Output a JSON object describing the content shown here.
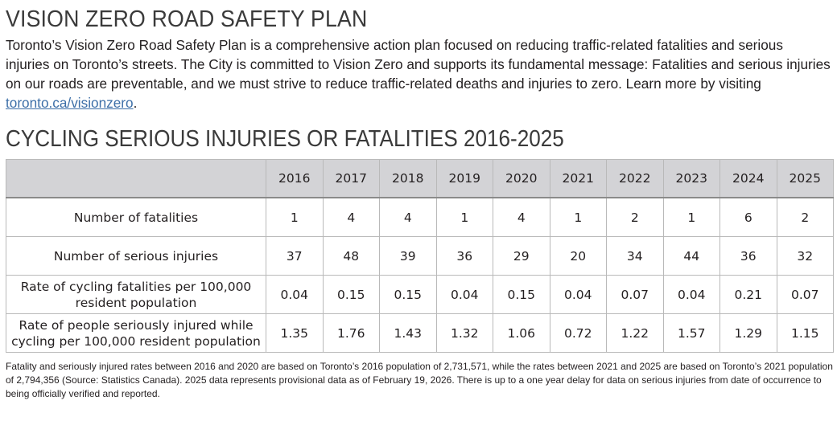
{
  "heading": "VISION ZERO ROAD SAFETY PLAN",
  "intro": {
    "text": "Toronto’s Vision Zero Road Safety Plan is a comprehensive action plan focused on reducing traffic-related fatalities and serious injuries on Toronto’s streets. The City is committed to Vision Zero and supports its fundamental message: Fatalities and serious injuries on our roads are preventable, and we must strive to reduce traffic-related deaths and injuries to zero. Learn more by visiting ",
    "link_text": "toronto.ca/visionzero",
    "end": "."
  },
  "table_title": "CYCLING SERIOUS INJURIES OR FATALITIES 2016-2025",
  "table": {
    "years": [
      "2016",
      "2017",
      "2018",
      "2019",
      "2020",
      "2021",
      "2022",
      "2023",
      "2024",
      "2025"
    ],
    "rows": [
      {
        "label": "Number of fatalities",
        "values": [
          "1",
          "4",
          "4",
          "1",
          "4",
          "1",
          "2",
          "1",
          "6",
          "2"
        ]
      },
      {
        "label": "Number of serious injuries",
        "values": [
          "37",
          "48",
          "39",
          "36",
          "29",
          "20",
          "34",
          "44",
          "36",
          "32"
        ]
      },
      {
        "label": "Rate of cycling fatalities per 100,000 resident population",
        "values": [
          "0.04",
          "0.15",
          "0.15",
          "0.04",
          "0.15",
          "0.04",
          "0.07",
          "0.04",
          "0.21",
          "0.07"
        ]
      },
      {
        "label": "Rate of people seriously injured while cycling per 100,000 resident population",
        "values": [
          "1.35",
          "1.76",
          "1.43",
          "1.32",
          "1.06",
          "0.72",
          "1.22",
          "1.57",
          "1.29",
          "1.15"
        ]
      }
    ]
  },
  "footnote": "Fatality and seriously injured rates between 2016 and 2020 are based on Toronto’s 2016 population of 2,731,571, while the rates between 2021 and 2025 are based on Toronto’s 2021 population of 2,794,356 (Source: Statistics Canada). 2025 data represents provisional data as of February 19, 2026. There is up to a one year delay for data on serious injuries from date of occurrence to being officially verified and reported."
}
